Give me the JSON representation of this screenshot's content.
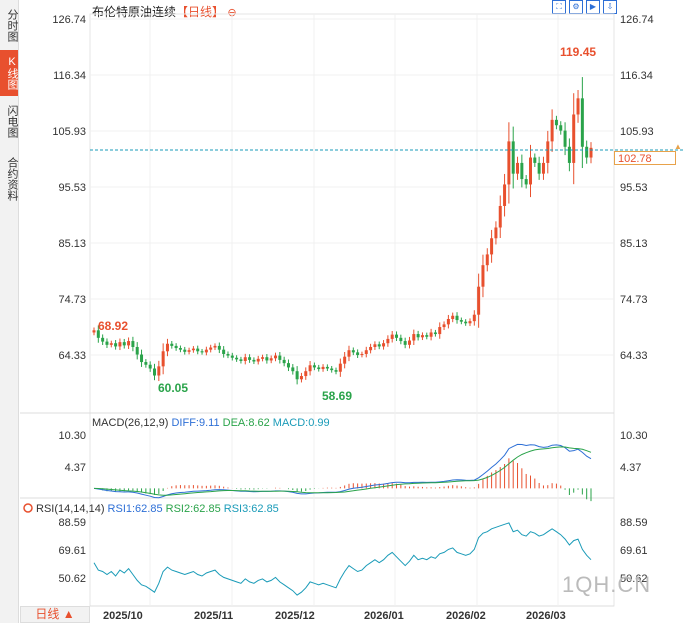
{
  "side_tabs": [
    {
      "label": "分时图",
      "active": false
    },
    {
      "label": "K线图",
      "active": true
    },
    {
      "label": "闪电图",
      "active": false
    },
    {
      "label": "合约资料",
      "active": false
    }
  ],
  "header": {
    "title": "布伦特原油连续",
    "period": "【日线】",
    "zoom_icon": "zoom-out-icon"
  },
  "toolbar": {
    "icons": [
      "fullscreen-icon",
      "settings-icon",
      "play-icon",
      "export-icon"
    ]
  },
  "price_axis": {
    "ticks": [
      "126.74",
      "116.34",
      "105.93",
      "95.53",
      "85.13",
      "74.73",
      "64.33"
    ]
  },
  "current_price": "102.78",
  "annotations": {
    "start": "68.92",
    "low1": "60.05",
    "low2": "58.69",
    "high": "119.45"
  },
  "macd": {
    "title": "MACD(26,12,9)",
    "diff": "DIFF:9.11",
    "dea": "DEA:8.62",
    "macd": "MACD:0.99",
    "ticks": [
      "10.30",
      "4.37"
    ]
  },
  "rsi": {
    "title": "RSI(14,14,14)",
    "rsi1": "RSI1:62.85",
    "rsi2": "RSI2:62.85",
    "rsi3": "RSI3:62.85",
    "ticks": [
      "88.59",
      "69.61",
      "50.62"
    ]
  },
  "x_axis": {
    "labels": [
      "2025/10",
      "2025/11",
      "2025/12",
      "2026/01",
      "2026/02",
      "2026/03"
    ]
  },
  "period_button": "日线 ▲",
  "watermark": "1QH.CN",
  "chart_data": {
    "type": "candlestick",
    "title": "布伦特原油连续",
    "y_range": [
      58,
      127
    ],
    "prices": [
      68.9,
      67.5,
      66.8,
      66.2,
      66.5,
      65.9,
      66.7,
      66.1,
      66.9,
      65.8,
      64.4,
      63.0,
      62.5,
      61.8,
      60.5,
      62.2,
      65.0,
      66.4,
      66.0,
      65.6,
      65.3,
      64.9,
      65.2,
      65.5,
      65.0,
      64.8,
      65.3,
      65.7,
      66.0,
      65.3,
      64.5,
      64.2,
      63.8,
      63.5,
      63.2,
      63.9,
      63.4,
      63.1,
      63.6,
      63.9,
      63.3,
      63.7,
      64.2,
      63.4,
      62.8,
      62.0,
      61.3,
      59.8,
      60.4,
      61.3,
      62.4,
      62.0,
      61.7,
      62.1,
      61.8,
      61.5,
      61.2,
      62.7,
      64.0,
      65.2,
      64.8,
      64.3,
      64.5,
      65.2,
      65.8,
      66.3,
      65.9,
      66.5,
      67.3,
      68.1,
      67.5,
      66.9,
      66.2,
      67.0,
      68.2,
      67.6,
      68.0,
      67.7,
      68.5,
      68.2,
      69.5,
      70.0,
      71.0,
      71.6,
      70.8,
      70.5,
      70.2,
      70.6,
      71.8,
      77.0,
      81.0,
      83.0,
      86.0,
      88.0,
      92.0,
      96.0,
      104.0,
      98.0,
      100.0,
      97.0,
      96.0,
      101.0,
      100.0,
      98.0,
      100.0,
      104.0,
      108.0,
      107.0,
      106.0,
      103.0,
      100.0,
      109.0,
      112.0,
      103.0,
      101.0,
      102.8
    ],
    "rsi": [
      61.0,
      56.0,
      55.0,
      53.0,
      55.0,
      52.0,
      56.0,
      54.0,
      57.0,
      53.0,
      49.0,
      46.0,
      45.0,
      43.0,
      41.0,
      47.0,
      55.0,
      58.0,
      56.0,
      55.0,
      54.0,
      53.0,
      54.0,
      55.0,
      53.0,
      52.0,
      54.0,
      55.0,
      56.0,
      53.0,
      51.0,
      50.0,
      49.0,
      48.0,
      47.0,
      50.0,
      48.0,
      47.0,
      49.0,
      50.0,
      48.0,
      49.0,
      51.0,
      48.0,
      46.0,
      44.0,
      42.0,
      39.0,
      41.0,
      44.0,
      48.0,
      47.0,
      46.0,
      47.0,
      46.0,
      45.0,
      44.0,
      50.0,
      55.0,
      59.0,
      57.0,
      55.0,
      56.0,
      59.0,
      61.0,
      63.0,
      61.0,
      63.0,
      66.0,
      68.0,
      65.0,
      62.0,
      59.0,
      62.0,
      66.0,
      63.0,
      64.0,
      63.0,
      65.0,
      64.0,
      67.0,
      68.0,
      70.0,
      71.0,
      68.0,
      67.0,
      66.0,
      67.0,
      70.0,
      78.0,
      81.0,
      82.0,
      84.0,
      85.0,
      86.0,
      87.0,
      88.0,
      82.0,
      83.0,
      80.0,
      79.0,
      82.0,
      81.0,
      79.0,
      80.0,
      82.0,
      84.0,
      82.0,
      80.0,
      77.0,
      73.0,
      76.0,
      77.0,
      70.0,
      66.0,
      63.0
    ]
  }
}
